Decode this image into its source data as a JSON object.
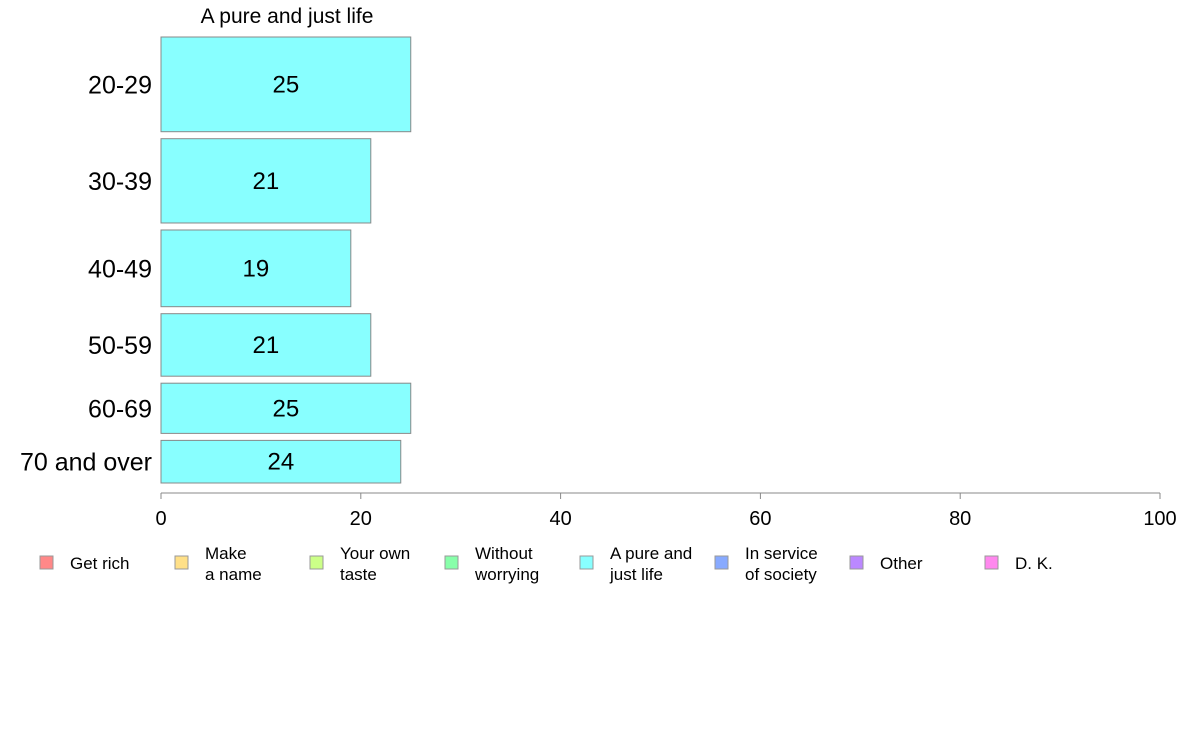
{
  "chart_data": {
    "type": "bar",
    "orientation": "horizontal",
    "title": "A pure and just life",
    "categories": [
      "20-29",
      "30-39",
      "40-49",
      "50-59",
      "60-69",
      "70 and over"
    ],
    "series": [
      {
        "name": "A pure and just life",
        "values": [
          25,
          21,
          19,
          21,
          25,
          24
        ]
      }
    ],
    "bar_shares": [
      1.0,
      0.89,
      0.81,
      0.66,
      0.53,
      0.45
    ],
    "data_labels": [
      "25",
      "21",
      "19",
      "21",
      "25",
      "24"
    ],
    "xlim": [
      0,
      100
    ],
    "xticks": [
      "0",
      "20",
      "40",
      "60",
      "80",
      "100"
    ],
    "xlabel": "",
    "ylabel": "",
    "grid": false,
    "bar_color": "#88ffff",
    "bar_edge_color": "#888888",
    "legend_placement": "bottom",
    "legend": [
      {
        "label": [
          "Get rich"
        ],
        "color": "#ff8888"
      },
      {
        "label": [
          "Make",
          "a name"
        ],
        "color": "#ffe088"
      },
      {
        "label": [
          "Your own",
          "taste"
        ],
        "color": "#ccff88"
      },
      {
        "label": [
          "Without",
          "worrying"
        ],
        "color": "#88ffaa"
      },
      {
        "label": [
          "A pure and",
          "just life"
        ],
        "color": "#88ffff"
      },
      {
        "label": [
          "In service",
          "of society"
        ],
        "color": "#88aaff"
      },
      {
        "label": [
          "Other"
        ],
        "color": "#bb88ff"
      },
      {
        "label": [
          "D. K."
        ],
        "color": "#ff88ee"
      }
    ]
  }
}
